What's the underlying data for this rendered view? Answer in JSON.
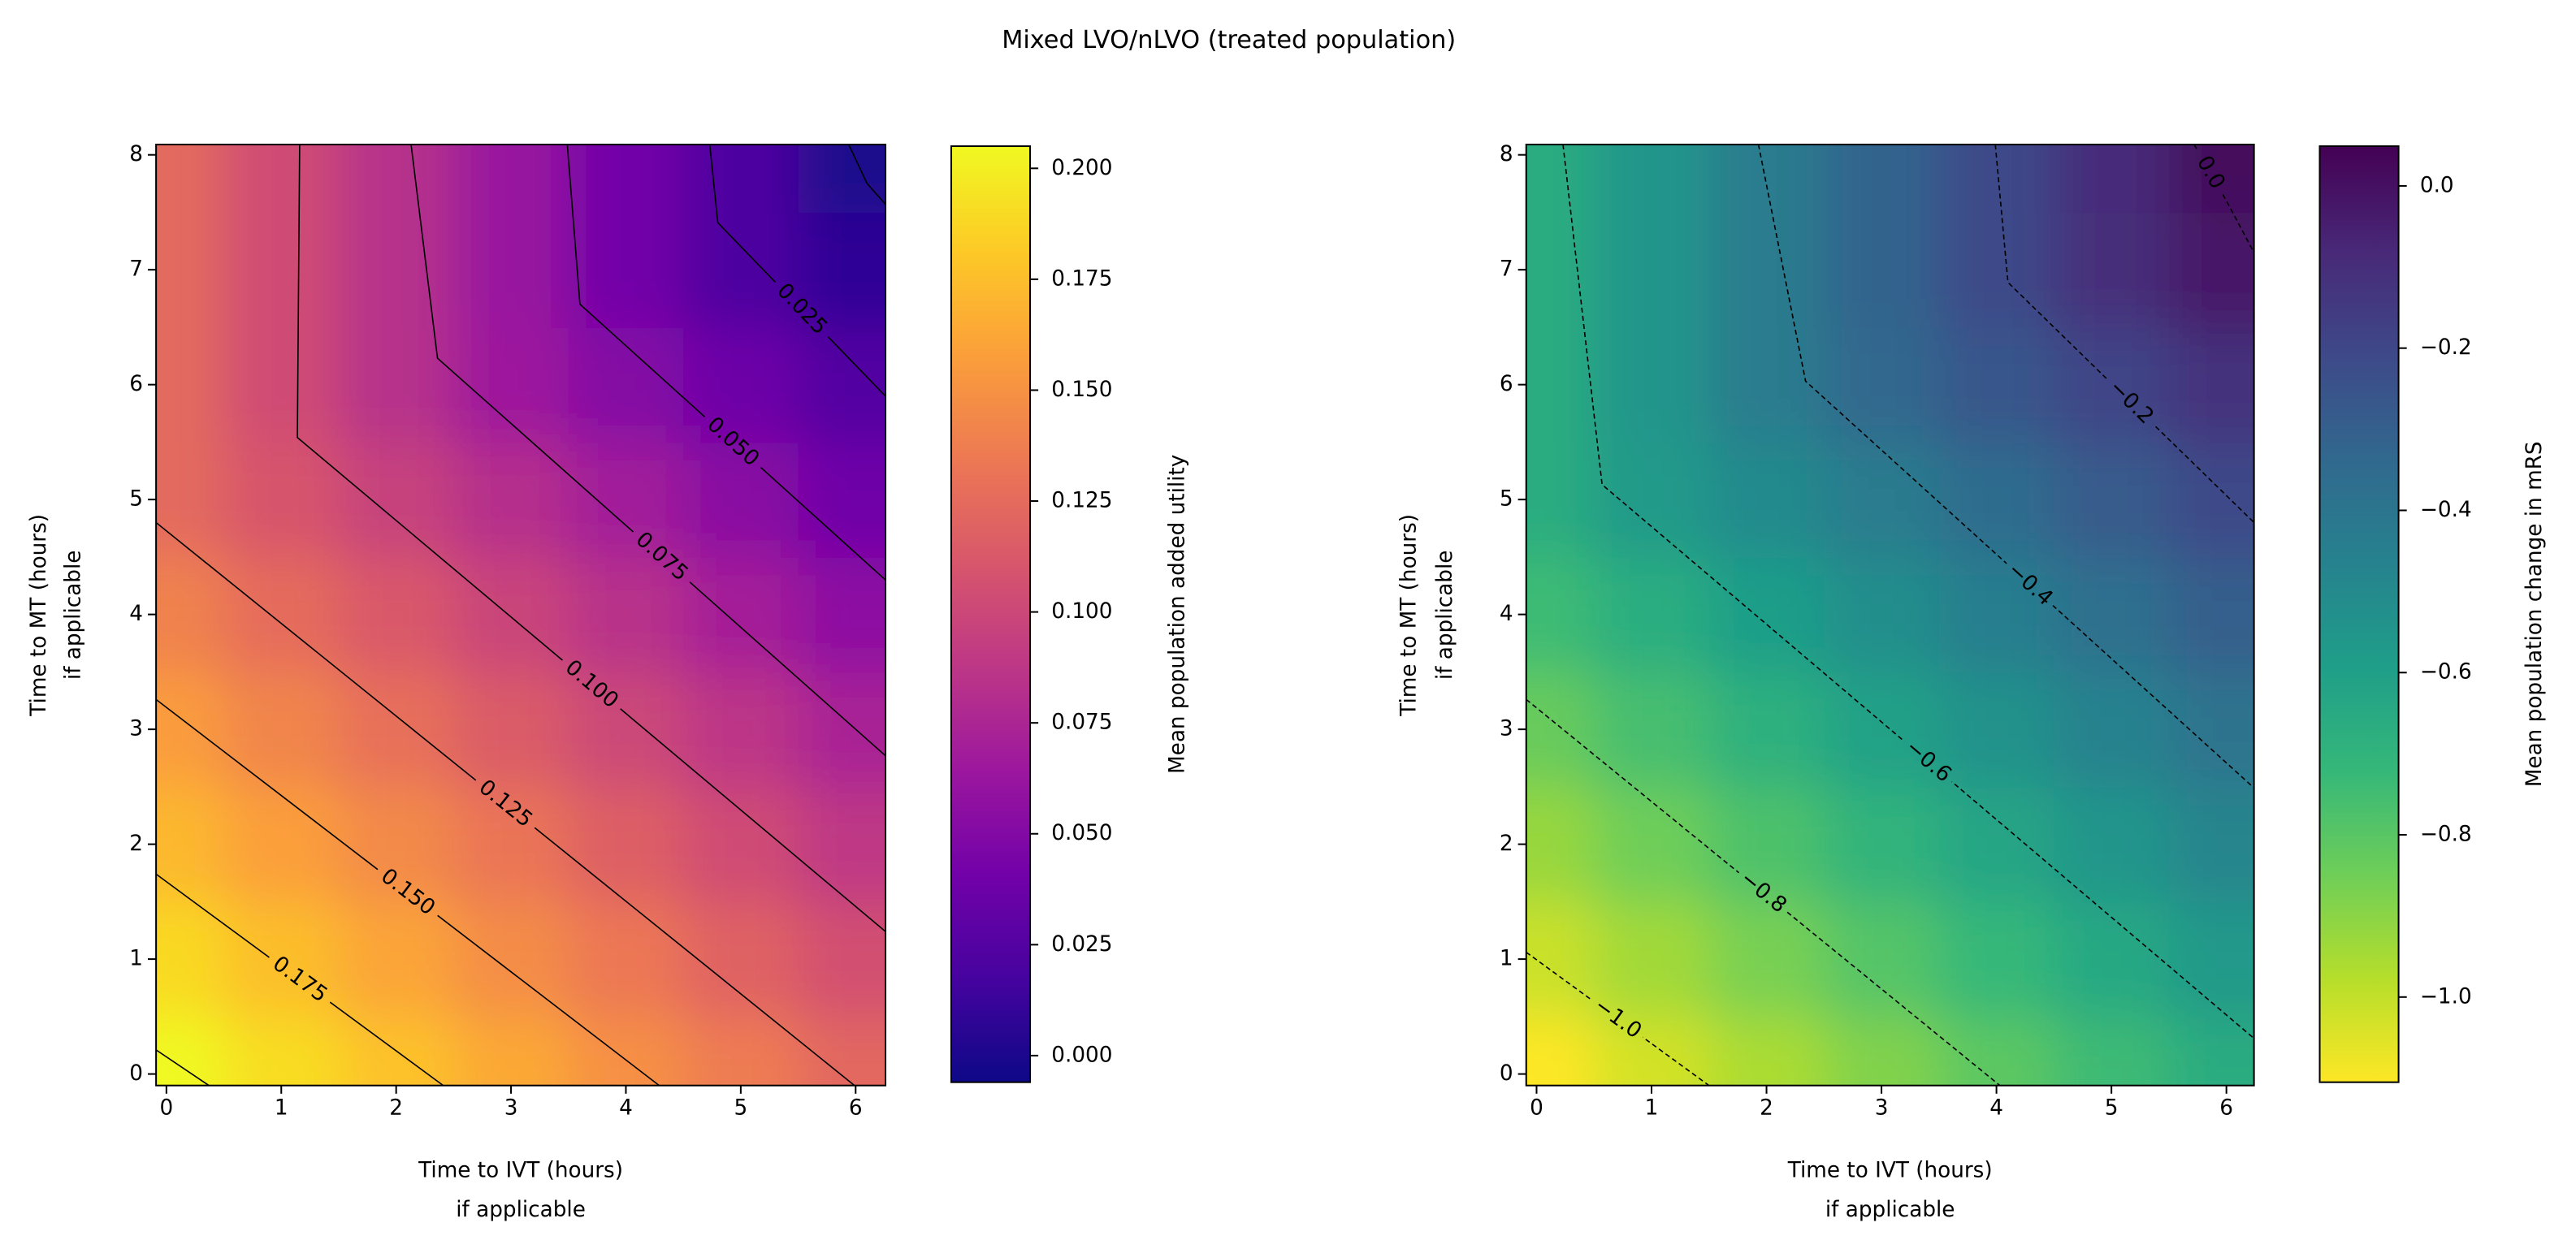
{
  "title": "Mixed LVO/nLVO (treated population)",
  "chart_data": [
    {
      "type": "contour",
      "xlabel": [
        "Time to IVT (hours)",
        "if applicable"
      ],
      "ylabel": [
        "Time to MT (hours)",
        "if applicable"
      ],
      "xlim": [
        -0.09,
        6.26
      ],
      "ylim": [
        -0.1,
        8.09
      ],
      "xticks": [
        0,
        1,
        2,
        3,
        4,
        5,
        6
      ],
      "yticks": [
        0,
        1,
        2,
        3,
        4,
        5,
        6,
        7,
        8
      ],
      "grid_x": [
        0,
        1,
        2,
        3,
        4,
        5,
        6
      ],
      "grid_y": [
        0,
        1,
        2,
        3,
        4,
        5,
        6,
        7,
        8
      ],
      "z": [
        [
          0.205,
          0.191,
          0.177,
          0.163,
          0.149,
          0.136,
          0.122
        ],
        [
          0.189,
          0.175,
          0.161,
          0.147,
          0.133,
          0.119,
          0.106
        ],
        [
          0.172,
          0.158,
          0.145,
          0.131,
          0.117,
          0.103,
          0.089
        ],
        [
          0.156,
          0.142,
          0.128,
          0.114,
          0.1,
          0.087,
          0.073
        ],
        [
          0.14,
          0.126,
          0.112,
          0.098,
          0.084,
          0.07,
          0.056
        ],
        [
          0.124,
          0.11,
          0.096,
          0.082,
          0.068,
          0.054,
          0.04
        ],
        [
          0.124,
          0.103,
          0.083,
          0.065,
          0.051,
          0.038,
          0.024
        ],
        [
          0.124,
          0.103,
          0.083,
          0.062,
          0.041,
          0.021,
          0.008
        ],
        [
          0.124,
          0.103,
          0.083,
          0.062,
          0.041,
          0.021,
          0.0
        ]
      ],
      "colormap": [
        "#0d0887",
        "#46039f",
        "#7201a8",
        "#9c179e",
        "#bd3786",
        "#d8576b",
        "#ed7953",
        "#fb9f3a",
        "#fdca26",
        "#f0f921"
      ],
      "colorbar": {
        "label": "Mean population added utility",
        "lim": [
          -0.006,
          0.205
        ],
        "ticks": [
          {
            "value": 0,
            "label": "0.000"
          },
          0.025,
          {
            "value": 0.05,
            "label": "0.050"
          },
          0.075,
          {
            "value": 0.1,
            "label": "0.100"
          },
          0.125,
          {
            "value": 0.15,
            "label": "0.150"
          },
          0.175,
          {
            "value": 0.2,
            "label": "0.200"
          }
        ]
      },
      "contour_color": "#000000",
      "contour_style": "solid",
      "contours": [
        {
          "level": 0.2,
          "labeled": false,
          "x": [
            -0.09,
            0.37
          ],
          "y": [
            0.21,
            -0.1
          ]
        },
        {
          "level": 0.175,
          "x": [
            -0.09,
            2.41
          ],
          "y": [
            1.74,
            -0.1
          ]
        },
        {
          "level": 0.15,
          "label": "0.150",
          "x": [
            -0.09,
            4.29
          ],
          "y": [
            3.26,
            -0.1
          ]
        },
        {
          "level": 0.125,
          "x": [
            -0.09,
            5.99
          ],
          "y": [
            4.8,
            -0.1
          ]
        },
        {
          "level": 0.1,
          "label": "0.100",
          "x": [
            1.16,
            1.14,
            6.26
          ],
          "y": [
            8.09,
            5.54,
            1.24
          ]
        },
        {
          "level": 0.075,
          "x": [
            2.13,
            2.36,
            6.26
          ],
          "y": [
            8.09,
            6.23,
            2.77
          ]
        },
        {
          "level": 0.05,
          "label": "0.050",
          "x": [
            3.49,
            3.6,
            6.26
          ],
          "y": [
            8.09,
            6.7,
            4.3
          ]
        },
        {
          "level": 0.025,
          "x": [
            4.73,
            4.8,
            6.26
          ],
          "y": [
            8.09,
            7.41,
            5.9
          ]
        },
        {
          "level": 0.0,
          "labeled": false,
          "x": [
            5.94,
            6.1,
            6.26
          ],
          "y": [
            8.09,
            7.75,
            7.57
          ]
        }
      ]
    },
    {
      "type": "contour",
      "xlabel": [
        "Time to IVT (hours)",
        "if applicable"
      ],
      "ylabel": [
        "Time to MT (hours)",
        "if applicable"
      ],
      "xlim": [
        -0.09,
        6.24
      ],
      "ylim": [
        -0.1,
        8.09
      ],
      "xticks": [
        0,
        1,
        2,
        3,
        4,
        5,
        6
      ],
      "yticks": [
        0,
        1,
        2,
        3,
        4,
        5,
        6,
        7,
        8
      ],
      "grid_x": [
        0,
        1,
        2,
        3,
        4,
        5,
        6
      ],
      "grid_y": [
        0,
        1,
        2,
        3,
        4,
        5,
        6,
        7,
        8
      ],
      "z": [
        [
          -1.105,
          -1.031,
          -0.957,
          -0.883,
          -0.809,
          -0.735,
          -0.661
        ],
        [
          -1.014,
          -0.94,
          -0.866,
          -0.792,
          -0.718,
          -0.644,
          -0.57
        ],
        [
          -0.923,
          -0.849,
          -0.775,
          -0.701,
          -0.627,
          -0.553,
          -0.479
        ],
        [
          -0.832,
          -0.758,
          -0.684,
          -0.61,
          -0.536,
          -0.462,
          -0.388
        ],
        [
          -0.741,
          -0.667,
          -0.593,
          -0.519,
          -0.445,
          -0.371,
          -0.297
        ],
        [
          -0.663,
          -0.576,
          -0.502,
          -0.428,
          -0.354,
          -0.28,
          -0.206
        ],
        [
          -0.663,
          -0.549,
          -0.434,
          -0.337,
          -0.263,
          -0.189,
          -0.115
        ],
        [
          -0.663,
          -0.549,
          -0.434,
          -0.32,
          -0.206,
          -0.098,
          -0.024
        ],
        [
          -0.663,
          -0.549,
          -0.434,
          -0.32,
          -0.206,
          -0.092,
          0.023
        ]
      ],
      "colormap": [
        "#fde725",
        "#b5de2b",
        "#6ece58",
        "#35b779",
        "#1f9e89",
        "#26828e",
        "#31688e",
        "#3e4989",
        "#482878",
        "#440154"
      ],
      "colorbar": {
        "label": "Mean population change in mRS",
        "lim": [
          -1.105,
          0.049
        ],
        "ticks": [
          {
            "value": -1,
            "label": "−1.0"
          },
          {
            "value": -0.8,
            "label": "−0.8"
          },
          {
            "value": -0.6,
            "label": "−0.6"
          },
          {
            "value": -0.4,
            "label": "−0.4"
          },
          {
            "value": -0.2,
            "label": "−0.2"
          },
          {
            "value": 0,
            "label": "0.0"
          }
        ]
      },
      "contour_color": "#000000",
      "contour_style": "dashed",
      "contours": [
        {
          "level": -1,
          "label": "−1.0",
          "x": [
            -0.09,
            1.5
          ],
          "y": [
            1.06,
            -0.1
          ]
        },
        {
          "level": -0.8,
          "label": "−0.8",
          "x": [
            -0.09,
            4.03
          ],
          "y": [
            3.26,
            -0.1
          ]
        },
        {
          "level": -0.6,
          "label": "−0.6",
          "x": [
            0.23,
            0.57,
            6.24
          ],
          "y": [
            8.09,
            5.13,
            0.31
          ]
        },
        {
          "level": -0.4,
          "label": "−0.4",
          "x": [
            1.93,
            2.34,
            6.24
          ],
          "y": [
            8.09,
            6.03,
            2.49
          ]
        },
        {
          "level": -0.2,
          "label": "−0.2",
          "x": [
            3.99,
            4.1,
            6.24
          ],
          "y": [
            8.09,
            6.89,
            4.8
          ]
        },
        {
          "level": 0,
          "label": "0.0",
          "x": [
            5.72,
            6.0,
            6.24
          ],
          "y": [
            8.09,
            7.6,
            7.15
          ]
        }
      ]
    }
  ]
}
